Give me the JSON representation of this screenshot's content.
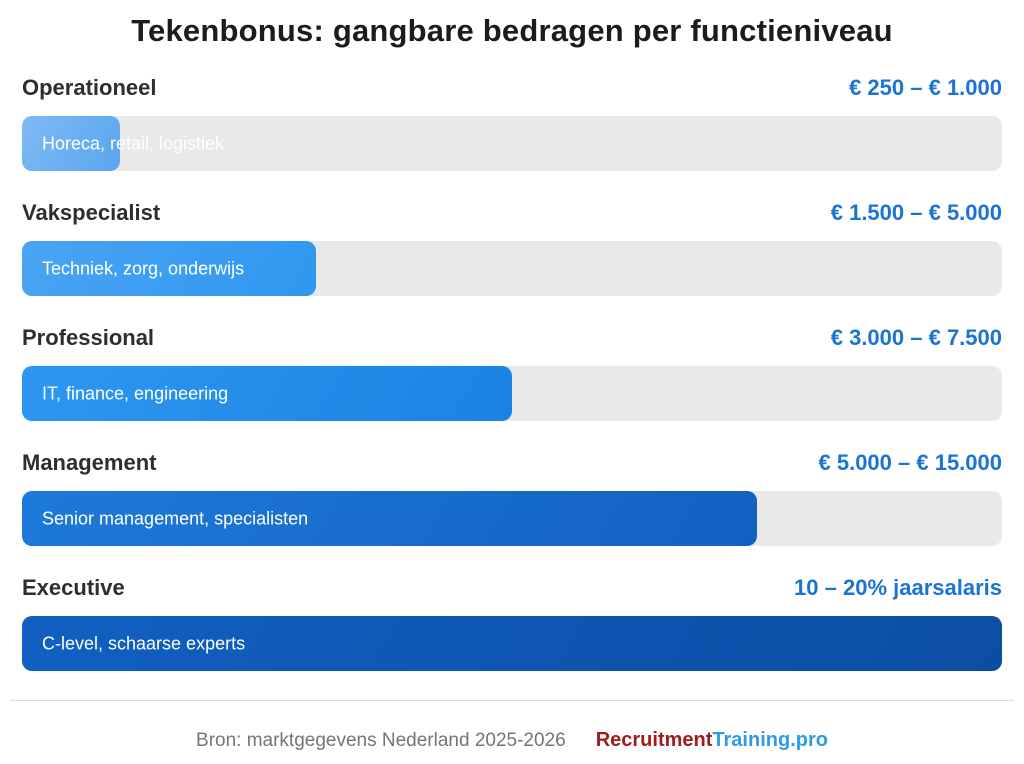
{
  "title": "Tekenbonus: gangbare bedragen per functieniveau",
  "chart_data": {
    "type": "bar",
    "orientation": "horizontal",
    "title": "Tekenbonus: gangbare bedragen per functieniveau",
    "categories": [
      "Operationeel",
      "Vakspecialist",
      "Professional",
      "Management",
      "Executive"
    ],
    "legend": "none",
    "grid": false,
    "value_axis": "hidden",
    "rows": [
      {
        "category": "Operationeel",
        "value_label": "€ 250 – € 1.000",
        "bar_label": "Horeca, retail, logistiek",
        "percent": 10,
        "color_start": "#7fbaf4",
        "color_end": "#5aa5ee"
      },
      {
        "category": "Vakspecialist",
        "value_label": "€ 1.500 – € 5.000",
        "bar_label": "Techniek, zorg, onderwijs",
        "percent": 30,
        "color_start": "#4aa4f3",
        "color_end": "#2f97f0"
      },
      {
        "category": "Professional",
        "value_label": "€ 3.000 – € 7.500",
        "bar_label": "IT, finance, engineering",
        "percent": 50,
        "color_start": "#2d97f1",
        "color_end": "#1a83e2"
      },
      {
        "category": "Management",
        "value_label": "€ 5.000 – € 15.000",
        "bar_label": "Senior management, specialisten",
        "percent": 75,
        "color_start": "#1d7ad9",
        "color_end": "#1360c2"
      },
      {
        "category": "Executive",
        "value_label": "10 – 20% jaarsalaris",
        "bar_label": "C-level, schaarse experts",
        "percent": 100,
        "color_start": "#1160c2",
        "color_end": "#0b4da3"
      }
    ]
  },
  "colors": {
    "value_text": "#1b73d3",
    "track": "#e9e9e9",
    "label_text": "#2e2e2e",
    "title_text": "#1c1c1c",
    "source_text": "#757575",
    "brand_primary_color": "#9e1c1c",
    "brand_secondary_color": "#2e9ce4"
  },
  "footer": {
    "source": "Bron: marktgegevens Nederland 2025-2026",
    "brand_primary": "Recruitment",
    "brand_secondary": "Training.pro"
  }
}
